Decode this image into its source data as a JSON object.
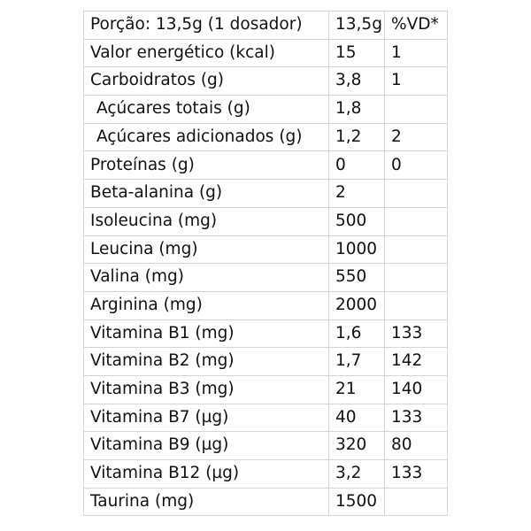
{
  "table": {
    "header": {
      "name": "Porção: 13,5g (1 dosador)",
      "qty": "13,5g",
      "vd": "%VD*"
    },
    "rows": [
      {
        "name": "Valor energético (kcal)",
        "qty": "15",
        "vd": "1"
      },
      {
        "name": "Carboidratos (g)",
        "qty": "3,8",
        "vd": "1"
      },
      {
        "name": "Açúcares totais (g)",
        "qty": "1,8",
        "vd": ""
      },
      {
        "name": "Açúcares adicionados (g)",
        "qty": "1,2",
        "vd": "2"
      },
      {
        "name": "Proteínas (g)",
        "qty": "0",
        "vd": "0"
      },
      {
        "name": "Beta-alanina (g)",
        "qty": "2",
        "vd": ""
      },
      {
        "name": "Isoleucina (mg)",
        "qty": "500",
        "vd": ""
      },
      {
        "name": "Leucina (mg)",
        "qty": "1000",
        "vd": ""
      },
      {
        "name": "Valina (mg)",
        "qty": "550",
        "vd": ""
      },
      {
        "name": "Arginina (mg)",
        "qty": "2000",
        "vd": ""
      },
      {
        "name": "Vitamina B1 (mg)",
        "qty": "1,6",
        "vd": "133"
      },
      {
        "name": "Vitamina B2 (mg)",
        "qty": "1,7",
        "vd": "142"
      },
      {
        "name": "Vitamina B3 (mg)",
        "qty": "21",
        "vd": "140"
      },
      {
        "name": "Vitamina B7 (µg)",
        "qty": "40",
        "vd": "133"
      },
      {
        "name": "Vitamina B9 (µg)",
        "qty": "320",
        "vd": "80"
      },
      {
        "name": "Vitamina B12 (µg)",
        "qty": "3,2",
        "vd": "133"
      },
      {
        "name": "Taurina (mg)",
        "qty": "1500",
        "vd": ""
      }
    ]
  }
}
